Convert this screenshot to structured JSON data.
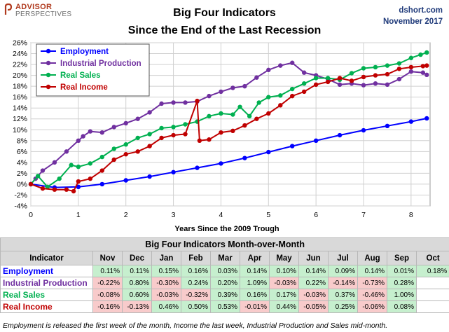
{
  "logo": {
    "line1": "ADVISOR",
    "line2": "PERSPECTIVES"
  },
  "source": {
    "site": "dshort.com",
    "date": "November 2017"
  },
  "chart_data": {
    "type": "line",
    "title": "Big Four Indicators",
    "subtitle": "Since the End of the Last Recession",
    "xlabel": "Years Since the 2009 Trough",
    "ylabel": "",
    "xlim": [
      0,
      8.4
    ],
    "ylim": [
      -4,
      26
    ],
    "xticks": [
      0,
      1,
      2,
      3,
      4,
      5,
      6,
      7,
      8
    ],
    "yticks": [
      -4,
      -2,
      0,
      2,
      4,
      6,
      8,
      10,
      12,
      14,
      16,
      18,
      20,
      22,
      24,
      26
    ],
    "ytick_suffix": "%",
    "grid": true,
    "legend_position": "top-left",
    "series": [
      {
        "name": "Employment",
        "color": "#0000ff",
        "points": [
          [
            0,
            0.0
          ],
          [
            0.5,
            -0.6
          ],
          [
            1.0,
            -0.5
          ],
          [
            1.5,
            0.0
          ],
          [
            2.0,
            0.7
          ],
          [
            2.5,
            1.4
          ],
          [
            3.0,
            2.2
          ],
          [
            3.5,
            3.0
          ],
          [
            4.0,
            3.8
          ],
          [
            4.5,
            4.8
          ],
          [
            5.0,
            5.9
          ],
          [
            5.5,
            7.0
          ],
          [
            6.0,
            8.0
          ],
          [
            6.5,
            9.0
          ],
          [
            7.0,
            9.9
          ],
          [
            7.5,
            10.7
          ],
          [
            8.0,
            11.5
          ],
          [
            8.33,
            12.1
          ]
        ]
      },
      {
        "name": "Industrial Production",
        "color": "#7030a0",
        "points": [
          [
            0,
            0.0
          ],
          [
            0.1,
            1.0
          ],
          [
            0.25,
            2.5
          ],
          [
            0.5,
            4.0
          ],
          [
            0.75,
            6.0
          ],
          [
            1.0,
            8.0
          ],
          [
            1.1,
            8.8
          ],
          [
            1.25,
            9.7
          ],
          [
            1.5,
            9.5
          ],
          [
            1.75,
            10.5
          ],
          [
            2.0,
            11.2
          ],
          [
            2.25,
            12.0
          ],
          [
            2.5,
            13.2
          ],
          [
            2.75,
            14.8
          ],
          [
            3.0,
            15.0
          ],
          [
            3.25,
            15.0
          ],
          [
            3.5,
            15.2
          ],
          [
            3.75,
            16.2
          ],
          [
            4.0,
            17.0
          ],
          [
            4.25,
            17.7
          ],
          [
            4.5,
            18.0
          ],
          [
            4.75,
            19.6
          ],
          [
            5.0,
            21.0
          ],
          [
            5.25,
            21.8
          ],
          [
            5.5,
            22.3
          ],
          [
            5.75,
            20.5
          ],
          [
            6.0,
            20.0
          ],
          [
            6.25,
            19.3
          ],
          [
            6.5,
            18.3
          ],
          [
            6.75,
            18.5
          ],
          [
            7.0,
            18.2
          ],
          [
            7.25,
            18.5
          ],
          [
            7.5,
            18.3
          ],
          [
            7.75,
            19.3
          ],
          [
            8.0,
            20.7
          ],
          [
            8.25,
            20.5
          ],
          [
            8.33,
            20.1
          ]
        ]
      },
      {
        "name": "Real Sales",
        "color": "#00b050",
        "points": [
          [
            0,
            0.0
          ],
          [
            0.15,
            1.5
          ],
          [
            0.35,
            -0.5
          ],
          [
            0.6,
            1.0
          ],
          [
            0.85,
            3.5
          ],
          [
            1.0,
            3.2
          ],
          [
            1.25,
            3.8
          ],
          [
            1.5,
            5.0
          ],
          [
            1.75,
            6.5
          ],
          [
            2.0,
            7.3
          ],
          [
            2.25,
            8.5
          ],
          [
            2.5,
            9.2
          ],
          [
            2.75,
            10.3
          ],
          [
            3.0,
            10.5
          ],
          [
            3.25,
            11.0
          ],
          [
            3.5,
            11.5
          ],
          [
            3.75,
            12.5
          ],
          [
            4.0,
            13.0
          ],
          [
            4.25,
            12.8
          ],
          [
            4.4,
            14.2
          ],
          [
            4.6,
            12.5
          ],
          [
            4.8,
            15.0
          ],
          [
            5.0,
            16.0
          ],
          [
            5.25,
            16.3
          ],
          [
            5.5,
            17.5
          ],
          [
            5.75,
            18.5
          ],
          [
            6.0,
            19.5
          ],
          [
            6.25,
            19.5
          ],
          [
            6.5,
            19.2
          ],
          [
            6.75,
            20.4
          ],
          [
            7.0,
            21.3
          ],
          [
            7.25,
            21.5
          ],
          [
            7.5,
            21.8
          ],
          [
            7.75,
            22.2
          ],
          [
            8.0,
            23.2
          ],
          [
            8.2,
            23.8
          ],
          [
            8.33,
            24.2
          ]
        ]
      },
      {
        "name": "Real Income",
        "color": "#c00000",
        "points": [
          [
            0,
            0.0
          ],
          [
            0.25,
            -0.8
          ],
          [
            0.5,
            -1.0
          ],
          [
            0.75,
            -1.0
          ],
          [
            0.9,
            -1.3
          ],
          [
            1.0,
            0.5
          ],
          [
            1.25,
            1.0
          ],
          [
            1.5,
            2.5
          ],
          [
            1.75,
            4.5
          ],
          [
            2.0,
            5.5
          ],
          [
            2.25,
            6.0
          ],
          [
            2.5,
            7.0
          ],
          [
            2.75,
            8.5
          ],
          [
            3.0,
            9.0
          ],
          [
            3.25,
            9.2
          ],
          [
            3.5,
            15.3
          ],
          [
            3.55,
            8.0
          ],
          [
            3.75,
            8.2
          ],
          [
            4.0,
            9.5
          ],
          [
            4.25,
            9.8
          ],
          [
            4.5,
            10.8
          ],
          [
            4.75,
            12.0
          ],
          [
            5.0,
            13.0
          ],
          [
            5.25,
            14.5
          ],
          [
            5.5,
            16.2
          ],
          [
            5.75,
            17.0
          ],
          [
            6.0,
            18.3
          ],
          [
            6.25,
            18.8
          ],
          [
            6.5,
            19.5
          ],
          [
            6.75,
            19.0
          ],
          [
            7.0,
            19.7
          ],
          [
            7.25,
            20.0
          ],
          [
            7.5,
            20.2
          ],
          [
            7.75,
            21.2
          ],
          [
            8.0,
            21.5
          ],
          [
            8.25,
            21.7
          ],
          [
            8.33,
            21.8
          ]
        ]
      }
    ]
  },
  "table": {
    "title": "Big Four Indicators Month-over-Month",
    "columns": [
      "Indicator",
      "Nov",
      "Dec",
      "Jan",
      "Feb",
      "Mar",
      "Apr",
      "May",
      "Jun",
      "Jul",
      "Aug",
      "Sep",
      "Oct"
    ],
    "rows": [
      {
        "name": "Employment",
        "color": "#0000ff",
        "values": [
          "0.11%",
          "0.11%",
          "0.15%",
          "0.16%",
          "0.03%",
          "0.14%",
          "0.10%",
          "0.14%",
          "0.09%",
          "0.14%",
          "0.01%",
          "0.18%"
        ]
      },
      {
        "name": "Industrial Production",
        "color": "#7030a0",
        "values": [
          "-0.22%",
          "0.80%",
          "-0.30%",
          "0.24%",
          "0.20%",
          "1.09%",
          "-0.03%",
          "0.22%",
          "-0.14%",
          "-0.73%",
          "0.28%",
          ""
        ]
      },
      {
        "name": "Real Sales",
        "color": "#00b050",
        "values": [
          "-0.08%",
          "0.60%",
          "-0.03%",
          "-0.32%",
          "0.39%",
          "0.16%",
          "0.17%",
          "-0.03%",
          "0.37%",
          "-0.46%",
          "1.00%",
          ""
        ]
      },
      {
        "name": "Real Income",
        "color": "#c00000",
        "values": [
          "-0.16%",
          "-0.13%",
          "0.46%",
          "0.50%",
          "0.53%",
          "-0.01%",
          "0.44%",
          "-0.05%",
          "0.25%",
          "-0.06%",
          "0.08%",
          ""
        ]
      }
    ]
  },
  "footnote": "Employment is released the first week of the month, Income the last week, Industrial Production and Sales mid-month."
}
